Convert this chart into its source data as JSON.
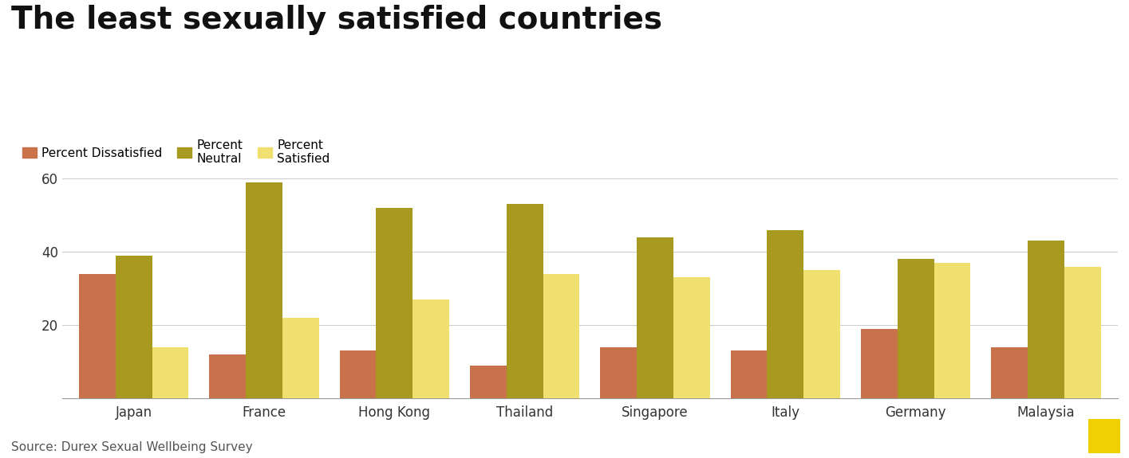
{
  "title": "The least sexually satisfied countries",
  "source": "Source: Durex Sexual Wellbeing Survey",
  "categories": [
    "Japan",
    "France",
    "Hong Kong",
    "Thailand",
    "Singapore",
    "Italy",
    "Germany",
    "Malaysia"
  ],
  "dissatisfied": [
    34,
    12,
    13,
    9,
    14,
    13,
    19,
    14
  ],
  "neutral": [
    39,
    59,
    52,
    53,
    44,
    46,
    38,
    43
  ],
  "satisfied": [
    14,
    22,
    27,
    34,
    33,
    35,
    37,
    36
  ],
  "color_dissatisfied": "#c8714a",
  "color_neutral": "#a89a20",
  "color_satisfied": "#f0e070",
  "ylim": [
    0,
    65
  ],
  "yticks": [
    20,
    40,
    60
  ],
  "bar_width": 0.28,
  "title_fontsize": 28,
  "tick_fontsize": 12,
  "legend_fontsize": 11,
  "source_fontsize": 11,
  "background_color": "#ffffff",
  "grid_color": "#cccccc",
  "bloomberg_yellow": "#f0d000"
}
